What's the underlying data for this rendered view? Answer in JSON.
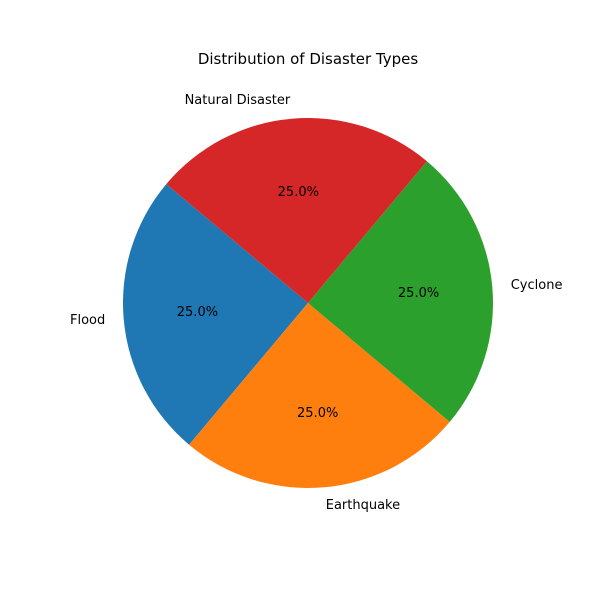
{
  "chart_data": {
    "type": "pie",
    "title": "Distribution of Disaster Types",
    "slices": [
      {
        "label": "Flood",
        "value": 25.0,
        "display": "25.0%",
        "color": "#1f77b4"
      },
      {
        "label": "Earthquake",
        "value": 25.0,
        "display": "25.0%",
        "color": "#ff7f0e"
      },
      {
        "label": "Cyclone",
        "value": 25.0,
        "display": "25.0%",
        "color": "#2ca02c"
      },
      {
        "label": "Natural Disaster",
        "value": 25.0,
        "display": "25.0%",
        "color": "#d62728"
      }
    ],
    "legend": "none"
  }
}
